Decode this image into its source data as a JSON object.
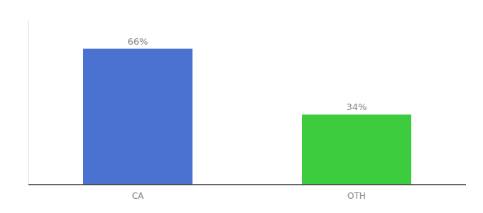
{
  "chart_data": {
    "type": "bar",
    "categories": [
      "CA",
      "OTH"
    ],
    "values": [
      66,
      34
    ],
    "value_labels": [
      "66%",
      "34%"
    ],
    "data_labels": true,
    "colors": [
      "#4a72d1",
      "#3dcc3d"
    ],
    "ylim": [
      0,
      80
    ],
    "tick_labels": "x"
  }
}
